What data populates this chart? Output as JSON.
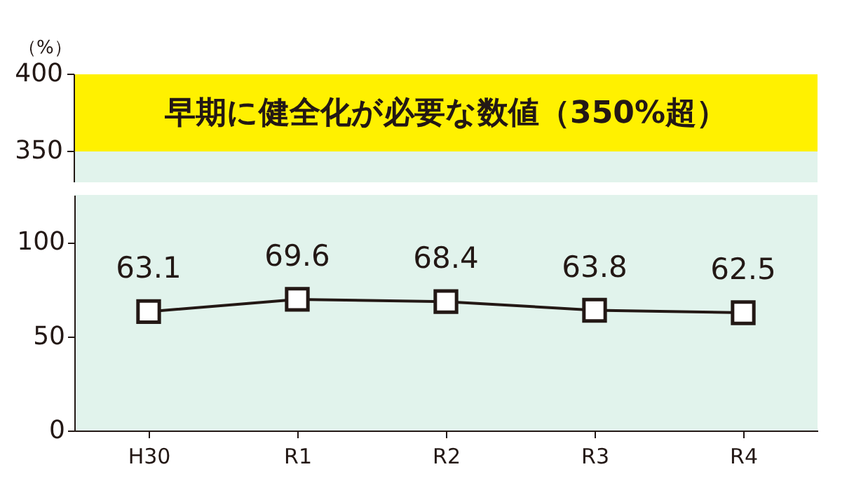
{
  "chart_data": [
    {
      "type": "other",
      "ylabel": "（%）",
      "annotations": [
        "400",
        "350",
        "早期に健全化が必要な数値（350%超）"
      ]
    },
    {
      "type": "line",
      "categories": [
        "H30",
        "R1",
        "R2",
        "R3",
        "R4"
      ],
      "series": [
        {
          "color": "#231815",
          "values": [
            63.1,
            69.6,
            68.4,
            63.8,
            62.5
          ]
        }
      ],
      "ylim": [
        0,
        125
      ],
      "yticks": [
        0,
        50,
        100
      ],
      "data_labels": true,
      "marker": "square",
      "line_style": "solid",
      "grid": false
    }
  ]
}
